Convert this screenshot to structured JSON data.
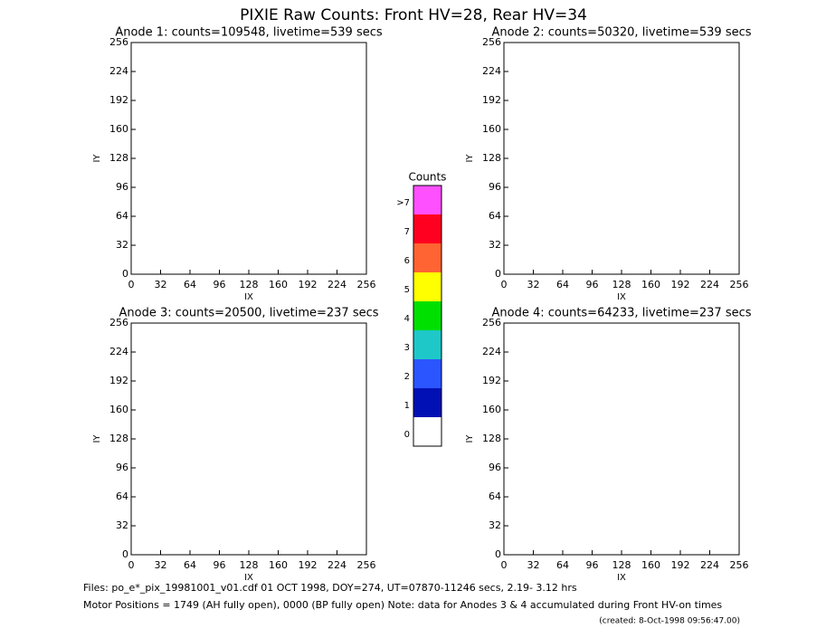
{
  "title": "PIXIE Raw Counts:  Front HV=28, Rear HV=34",
  "chart_data": [
    {
      "type": "heatmap",
      "title": "Anode 1: counts=109548, livetime=539 secs",
      "x_label": "IX",
      "y_label": "IY",
      "xlim": [
        0,
        256
      ],
      "ylim": [
        0,
        256
      ],
      "xticks": [
        0,
        32,
        64,
        96,
        128,
        160,
        192,
        224,
        256
      ],
      "yticks": [
        0,
        32,
        64,
        96,
        128,
        160,
        192,
        224,
        256
      ]
    },
    {
      "type": "heatmap",
      "title": "Anode 2: counts=50320, livetime=539 secs",
      "x_label": "IX",
      "y_label": "IY",
      "xlim": [
        0,
        256
      ],
      "ylim": [
        0,
        256
      ],
      "xticks": [
        0,
        32,
        64,
        96,
        128,
        160,
        192,
        224,
        256
      ],
      "yticks": [
        0,
        32,
        64,
        96,
        128,
        160,
        192,
        224,
        256
      ]
    },
    {
      "type": "heatmap",
      "title": "Anode 3: counts=20500, livetime=237 secs",
      "x_label": "IX",
      "y_label": "IY",
      "xlim": [
        0,
        256
      ],
      "ylim": [
        0,
        256
      ],
      "xticks": [
        0,
        32,
        64,
        96,
        128,
        160,
        192,
        224,
        256
      ],
      "yticks": [
        0,
        32,
        64,
        96,
        128,
        160,
        192,
        224,
        256
      ]
    },
    {
      "type": "heatmap",
      "title": "Anode 4: counts=64233, livetime=237 secs",
      "x_label": "IX",
      "y_label": "IY",
      "xlim": [
        0,
        256
      ],
      "ylim": [
        0,
        256
      ],
      "xticks": [
        0,
        32,
        64,
        96,
        128,
        160,
        192,
        224,
        256
      ],
      "yticks": [
        0,
        32,
        64,
        96,
        128,
        160,
        192,
        224,
        256
      ]
    }
  ],
  "colorbar": {
    "title": "Counts",
    "labels": [
      "0",
      "1",
      "2",
      "3",
      "4",
      "5",
      "6",
      "7",
      ">7"
    ],
    "colors": [
      "#ffffff",
      "#0010b4",
      "#2a55ff",
      "#1ec8c8",
      "#00e000",
      "#ffff00",
      "#ff6432",
      "#ff0020",
      "#ff50ff"
    ]
  },
  "footer": {
    "files": "Files: po_e*_pix_19981001_v01.cdf    01 OCT 1998, DOY=274, UT=07870-11246 secs,  2.19- 3.12 hrs",
    "motor": "Motor Positions = 1749 (AH fully open), 0000 (BP fully open)    Note: data for Anodes 3 & 4 accumulated during Front HV-on times",
    "created": "(created:  8-Oct-1998 09:56:47.00)"
  }
}
